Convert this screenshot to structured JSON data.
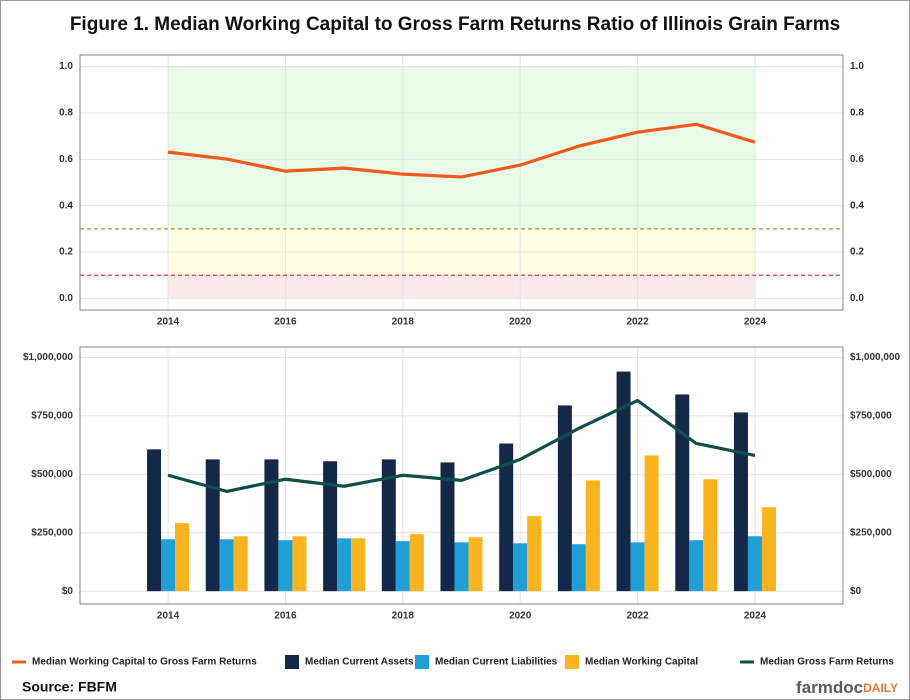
{
  "title": "Figure 1. Median Working Capital to Gross Farm Returns Ratio of Illinois Grain Farms",
  "source": "Source: FBFM",
  "logo": {
    "brand": "farmdoc",
    "suffix": "DAILY"
  },
  "chart_data": [
    {
      "type": "line",
      "x": [
        2014,
        2015,
        2016,
        2017,
        2018,
        2019,
        2020,
        2021,
        2022,
        2023,
        2024
      ],
      "series": [
        {
          "name": "Median Working Capital to Gross Farm Returns",
          "color": "#f05a1a",
          "type": "line",
          "values": [
            0.631,
            0.601,
            0.549,
            0.562,
            0.536,
            0.524,
            0.575,
            0.657,
            0.717,
            0.751,
            0.674
          ]
        }
      ],
      "xlim": [
        2012.5,
        2025.5
      ],
      "xticks": [
        2014,
        2016,
        2018,
        2020,
        2022,
        2024
      ],
      "ylim": [
        -0.05,
        1.05
      ],
      "yticks": [
        {
          "value": 0,
          "label": "0.0"
        },
        0.2,
        0.4,
        0.6,
        0.8,
        {
          "value": 1,
          "label": "1.0"
        }
      ],
      "bands": [
        {
          "from": 0.3,
          "to": 1,
          "x": [
            2014,
            2024
          ],
          "color": "#e8fbe6"
        },
        {
          "from": 0.1,
          "to": 0.3,
          "x": [
            2014,
            2024
          ],
          "color": "#fdfde2"
        },
        {
          "from": 0,
          "to": 0.1,
          "x": [
            2014,
            2024
          ],
          "color": "#fde8e8"
        }
      ],
      "reference_lines": [
        {
          "value": 0.3,
          "color": "#9a9a2a"
        },
        {
          "value": 0.1,
          "color": "#e03a3a"
        }
      ],
      "grid": true
    },
    {
      "type": "bar",
      "x": [
        2014,
        2015,
        2016,
        2017,
        2018,
        2019,
        2020,
        2021,
        2022,
        2023,
        2024
      ],
      "series": [
        {
          "name": "Median Current Assets",
          "color": "#14294a",
          "type": "bar",
          "values": [
            607000,
            564000,
            564000,
            556000,
            564000,
            551000,
            632000,
            795000,
            940000,
            842000,
            765000
          ]
        },
        {
          "name": "Median Current Liabilities",
          "color": "#1f9fd8",
          "type": "bar",
          "values": [
            222000,
            222000,
            218000,
            226000,
            214000,
            209000,
            205000,
            201000,
            209000,
            218000,
            235000
          ]
        },
        {
          "name": "Median Working Capital",
          "color": "#fbb41c",
          "type": "bar",
          "values": [
            291000,
            235000,
            235000,
            226000,
            244000,
            231000,
            321000,
            474000,
            581000,
            479000,
            359000
          ]
        },
        {
          "name": "Median Gross Farm Returns",
          "color": "#0f4f4a",
          "type": "line",
          "values": [
            496000,
            427000,
            479000,
            449000,
            496000,
            474000,
            564000,
            697000,
            816000,
            632000,
            581000
          ]
        }
      ],
      "xlim": [
        2012.5,
        2025.5
      ],
      "xticks": [
        2014,
        2016,
        2018,
        2020,
        2022,
        2024
      ],
      "ylim": [
        -55000,
        1045000
      ],
      "yticks": [
        {
          "value": 0,
          "label": "$0"
        },
        {
          "value": 250000,
          "label": "$250,000"
        },
        {
          "value": 500000,
          "label": "$500,000"
        },
        {
          "value": 750000,
          "label": "$750,000"
        },
        {
          "value": 1000000,
          "label": "$1,000,000"
        }
      ],
      "grid": true
    }
  ]
}
